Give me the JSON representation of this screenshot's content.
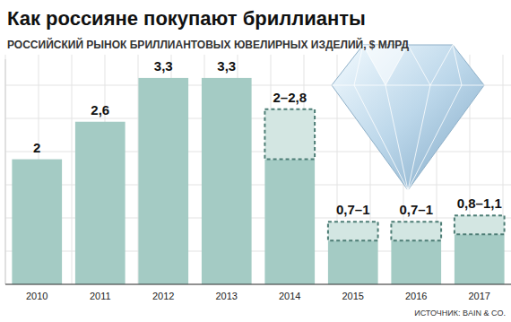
{
  "chart_data": {
    "type": "bar",
    "title": "Как россияне покупают бриллианты",
    "subtitle": "РОССИЙСКИЙ РЫНОК БРИЛЛИАНТОВЫХ ЮВЕЛИРНЫХ ИЗДЕЛИЙ, $ МЛРД",
    "source": "ИСТОЧНИК: BAIN & CO.",
    "categories": [
      "2010",
      "2011",
      "2012",
      "2013",
      "2014",
      "2015",
      "2016",
      "2017"
    ],
    "values": [
      2,
      2.6,
      3.3,
      3.3,
      2,
      0.7,
      0.7,
      0.8
    ],
    "high": [
      null,
      null,
      null,
      null,
      2.8,
      1,
      1,
      1.1
    ],
    "value_labels": [
      "2",
      "2,6",
      "3,3",
      "3,3",
      "2–2,8",
      "0,7–1",
      "0,7–1",
      "0,8–1,1"
    ],
    "color": "#a4cbc4",
    "ylim": [
      0,
      3.6
    ],
    "data_labels": true,
    "tick_labels": "x"
  }
}
